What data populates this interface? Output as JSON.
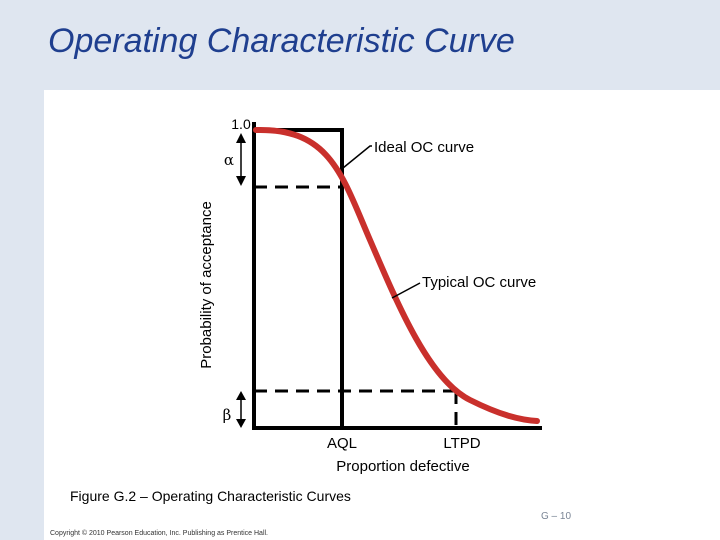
{
  "slide": {
    "title": "Operating Characteristic Curve",
    "caption": "Figure G.2 – Operating Characteristic Curves",
    "page_number": "G – 10",
    "copyright": "Copyright © 2010 Pearson Education, Inc. Publishing as Prentice Hall."
  },
  "diagram": {
    "y_axis_label": "Probability of acceptance",
    "y_top_tick": "1.0",
    "alpha_symbol": "α",
    "beta_symbol": "β",
    "ideal_label": "Ideal OC curve",
    "typical_label": "Typical OC curve",
    "aql_label": "AQL",
    "ltpd_label": "LTPD",
    "x_axis_label": "Proportion defective"
  },
  "colors": {
    "background_band": "#dfe6f0",
    "title": "#1f3f8f",
    "typical_curve": "#c9302c",
    "lines": "#000000"
  }
}
